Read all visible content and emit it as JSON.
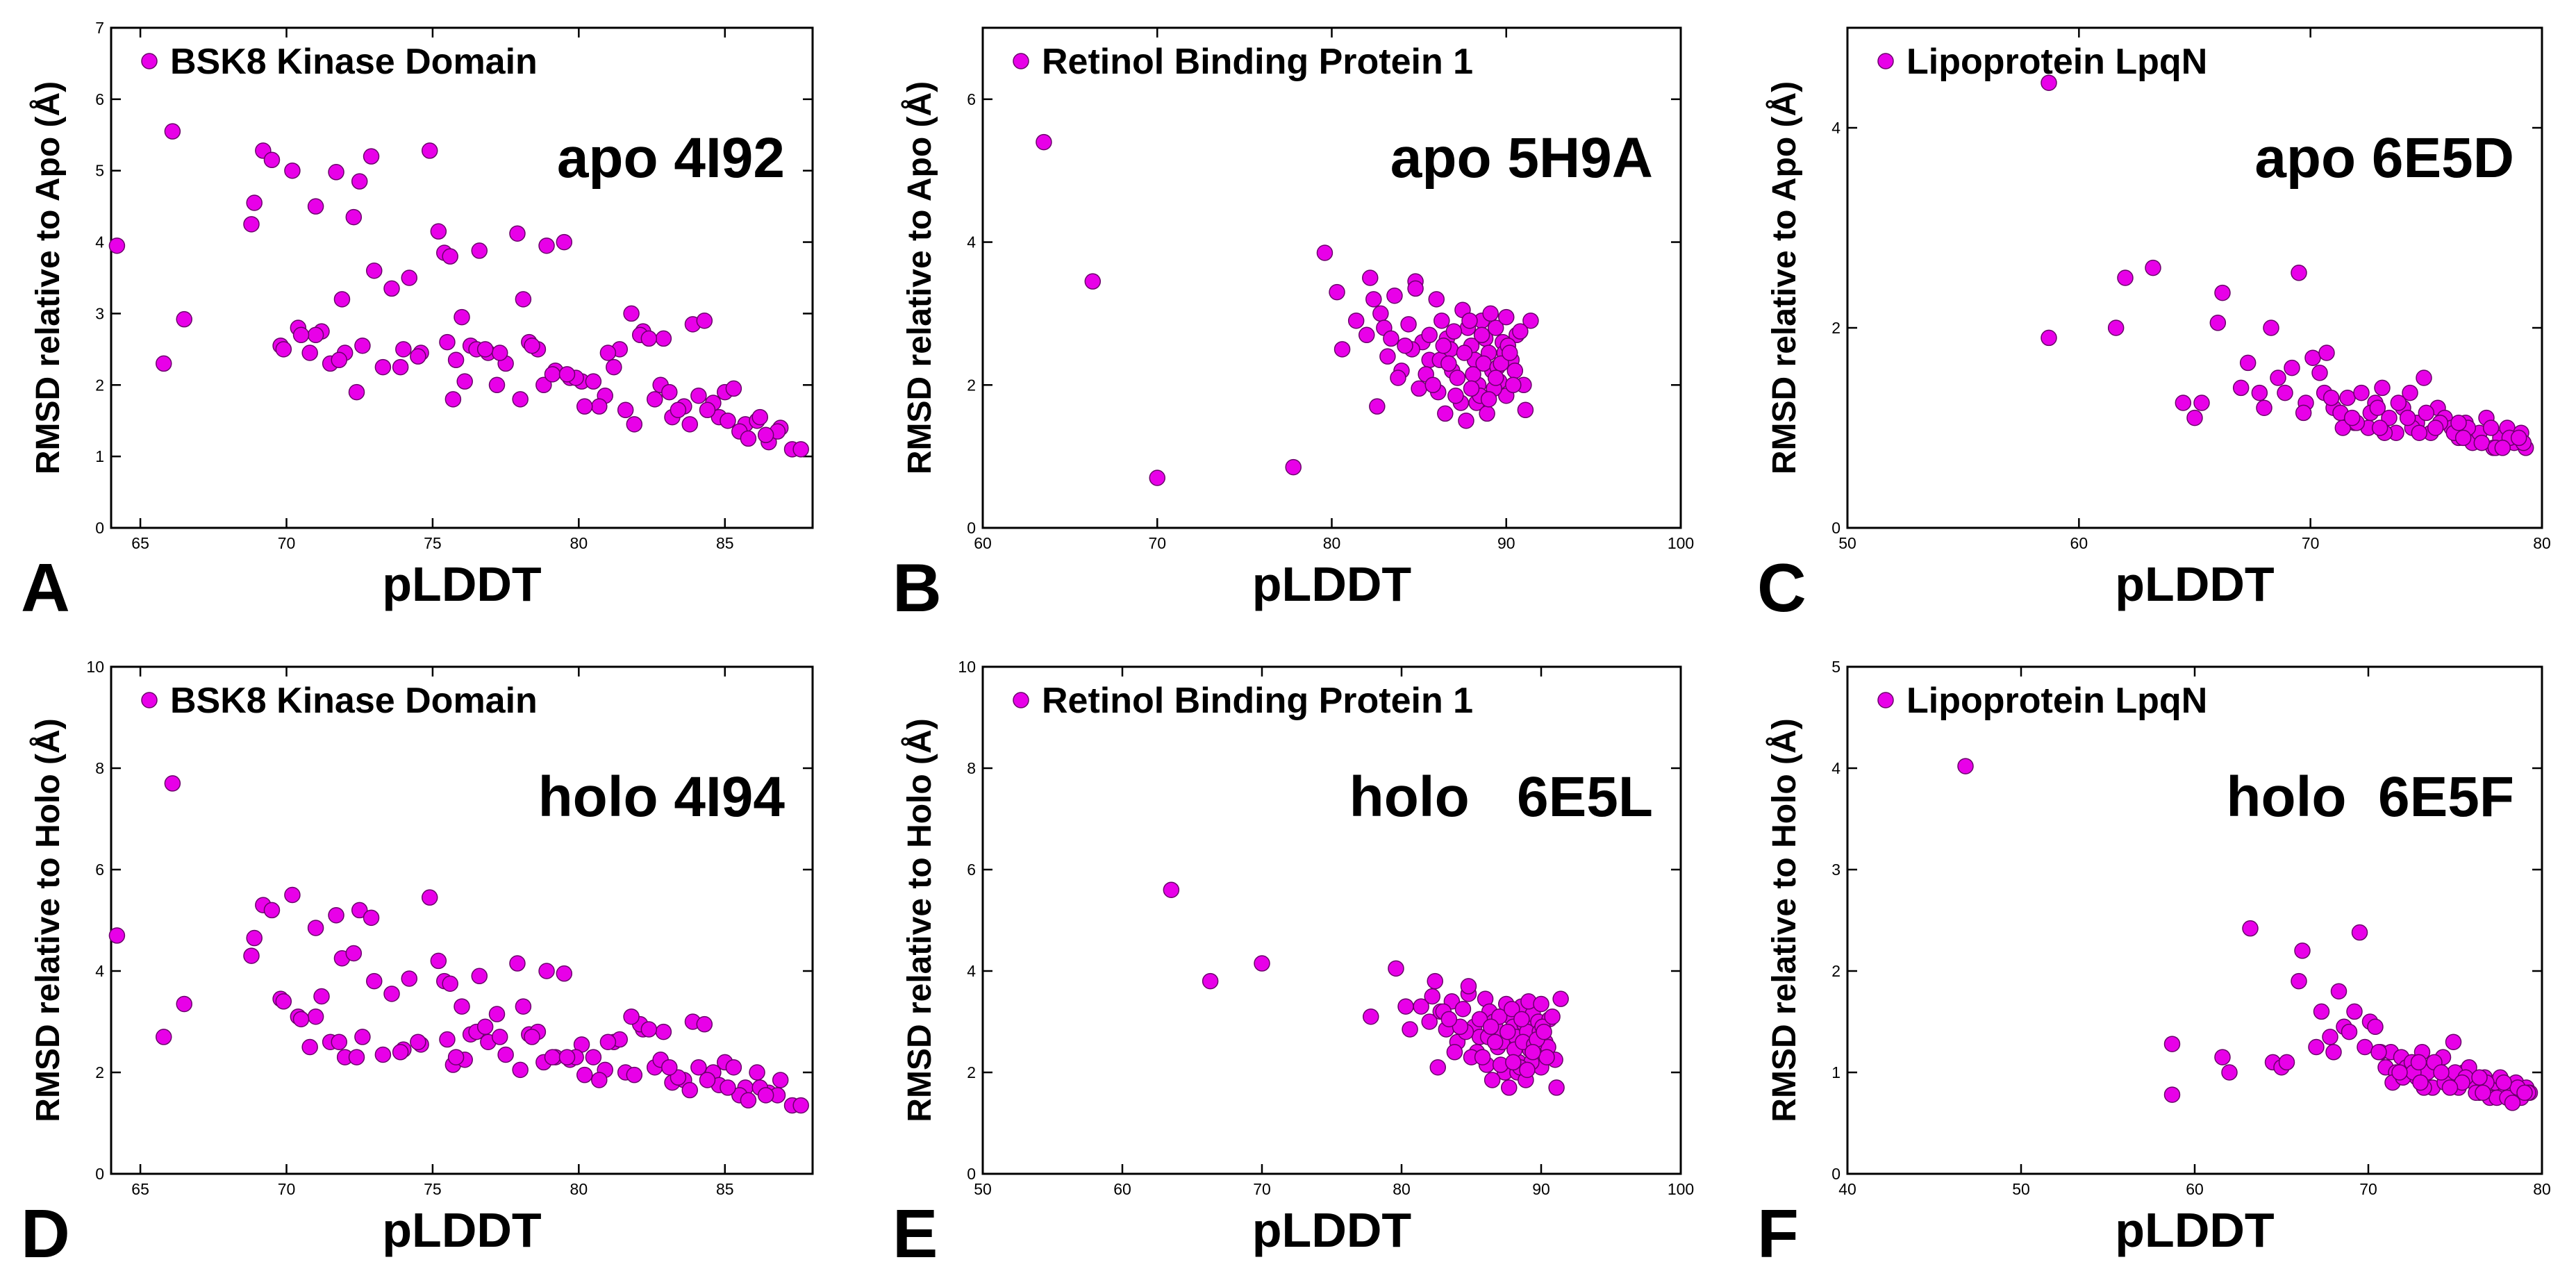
{
  "figure": {
    "type": "scatter-panel-grid",
    "marker_color": "#e800e8",
    "marker_edge": "#6a006a"
  },
  "chart_data": [
    {
      "type": "scatter",
      "panel": "A",
      "title": "apo 4I92",
      "legend": "BSK8 Kinase Domain",
      "xlabel": "pLDDT",
      "ylabel": "RMSD relative to Apo (Å)",
      "xlim": [
        64,
        88
      ],
      "ylim": [
        0,
        7
      ],
      "xticks": [
        65,
        70,
        75,
        80,
        85
      ],
      "yticks": [
        0,
        1,
        2,
        3,
        4,
        5,
        6,
        7
      ],
      "x": [
        64.2,
        65.8,
        66.1,
        66.5,
        68.8,
        68.9,
        69.2,
        69.5,
        69.8,
        70.2,
        70.4,
        70.8,
        71.0,
        71.2,
        71.5,
        71.7,
        71.9,
        72.0,
        72.3,
        72.5,
        72.6,
        72.9,
        73.0,
        73.3,
        73.6,
        74.0,
        74.2,
        74.6,
        74.9,
        75.2,
        75.4,
        75.5,
        75.6,
        75.7,
        76.0,
        76.1,
        76.3,
        76.6,
        76.9,
        77.2,
        77.5,
        77.9,
        78.1,
        78.3,
        78.6,
        78.9,
        79.2,
        79.5,
        79.7,
        80.1,
        80.5,
        80.9,
        81.2,
        81.6,
        81.9,
        82.2,
        82.6,
        82.9,
        83.2,
        83.6,
        83.9,
        84.3,
        84.6,
        85.0,
        85.3,
        85.7,
        86.1,
        86.5,
        86.9,
        87.3,
        87.6,
        69.9,
        71.0,
        71.8,
        72.4,
        75.8,
        76.5,
        77.3,
        78.4,
        78.8,
        79.1,
        79.9,
        80.7,
        81.4,
        82.1,
        82.8,
        83.4,
        84.1,
        84.8,
        85.5,
        86.2,
        86.8,
        70.5,
        73.9,
        74.5,
        76.8,
        78.0,
        79.6,
        80.2,
        81.0,
        81.8,
        82.4,
        83.1,
        83.8,
        84.4,
        85.1,
        85.8,
        86.4
      ],
      "y": [
        3.95,
        2.3,
        5.55,
        2.92,
        4.25,
        4.55,
        5.28,
        5.15,
        2.55,
        5.0,
        2.8,
        2.45,
        4.5,
        2.75,
        2.3,
        4.98,
        3.2,
        2.45,
        4.35,
        4.85,
        2.55,
        5.2,
        3.6,
        2.25,
        3.35,
        2.5,
        3.5,
        2.45,
        5.28,
        4.15,
        3.85,
        2.6,
        3.8,
        1.8,
        2.95,
        2.05,
        2.55,
        3.88,
        2.45,
        2.0,
        2.3,
        4.12,
        3.2,
        2.6,
        2.5,
        3.95,
        2.2,
        4.0,
        2.1,
        2.05,
        2.05,
        1.85,
        2.25,
        1.65,
        1.45,
        2.75,
        1.8,
        2.65,
        1.55,
        1.7,
        2.85,
        2.9,
        1.75,
        1.9,
        1.95,
        1.45,
        1.5,
        1.2,
        1.4,
        1.1,
        1.1,
        2.5,
        2.7,
        2.35,
        1.9,
        2.35,
        2.5,
        2.45,
        2.55,
        2.0,
        2.15,
        2.1,
        1.7,
        2.5,
        2.7,
        2.0,
        1.65,
        1.85,
        1.55,
        1.35,
        1.55,
        1.35,
        2.7,
        2.25,
        2.4,
        2.5,
        1.8,
        2.15,
        1.7,
        2.45,
        3.0,
        2.65,
        1.9,
        1.45,
        1.65,
        1.5,
        1.25,
        1.3
      ]
    },
    {
      "type": "scatter",
      "panel": "B",
      "title": "apo 5H9A",
      "legend": "Retinol Binding Protein 1",
      "xlabel": "pLDDT",
      "ylabel": "RMSD relative to Apo (Å)",
      "xlim": [
        60,
        100
      ],
      "ylim": [
        0,
        7
      ],
      "xticks": [
        60,
        70,
        80,
        90,
        100
      ],
      "yticks": [
        0,
        2,
        4,
        6
      ],
      "x": [
        63.5,
        66.3,
        70.0,
        77.8,
        79.6,
        80.3,
        80.6,
        81.4,
        82.0,
        82.4,
        82.8,
        83.2,
        83.6,
        84.0,
        84.4,
        84.8,
        85.2,
        85.6,
        86.0,
        86.3,
        86.6,
        86.9,
        87.2,
        87.5,
        87.8,
        88.0,
        88.2,
        88.4,
        88.6,
        88.8,
        89.0,
        89.2,
        89.4,
        89.6,
        89.8,
        90.0,
        90.3,
        90.6,
        91.0,
        91.4,
        82.2,
        83.0,
        83.8,
        84.6,
        85.4,
        86.1,
        86.8,
        87.4,
        88.1,
        88.7,
        89.3,
        89.9,
        90.5,
        91.1,
        82.6,
        84.2,
        85.0,
        85.8,
        86.5,
        87.1,
        87.7,
        88.3,
        88.9,
        89.5,
        90.1,
        90.8,
        86.2,
        87.0,
        87.9,
        88.5,
        89.1,
        89.7,
        90.4,
        84.8,
        85.6,
        86.4,
        87.6,
        88.6,
        89.4,
        90.2,
        83.4,
        86.7,
        88.0,
        89.0,
        90.0
      ],
      "y": [
        5.4,
        3.45,
        0.7,
        0.85,
        3.85,
        3.3,
        2.5,
        2.9,
        2.7,
        3.2,
        3.0,
        2.4,
        3.25,
        2.2,
        2.85,
        3.45,
        2.6,
        2.35,
        3.2,
        2.9,
        2.65,
        2.2,
        2.1,
        3.05,
        2.8,
        2.55,
        2.35,
        2.0,
        2.9,
        2.65,
        2.45,
        2.2,
        2.8,
        2.05,
        2.6,
        1.85,
        2.35,
        2.7,
        2.0,
        2.9,
        3.5,
        2.8,
        2.1,
        2.5,
        2.15,
        1.9,
        2.5,
        1.75,
        2.15,
        2.3,
        1.95,
        2.45,
        2.2,
        1.65,
        1.7,
        2.55,
        1.95,
        2.0,
        1.6,
        1.85,
        1.5,
        1.75,
        1.6,
        2.25,
        2.55,
        2.75,
        2.35,
        2.75,
        2.9,
        1.85,
        3.0,
        2.3,
        2.0,
        3.35,
        2.7,
        2.55,
        2.45,
        2.7,
        2.1,
        2.45,
        2.65,
        2.3,
        1.95,
        1.8,
        2.95
      ]
    },
    {
      "type": "scatter",
      "panel": "C",
      "title": "apo 6E5D",
      "legend": "Lipoprotein LpqN",
      "xlabel": "pLDDT",
      "ylabel": "RMSD relative to Apo (Å)",
      "xlim": [
        50,
        80
      ],
      "ylim": [
        0,
        5
      ],
      "xticks": [
        50,
        60,
        70,
        80
      ],
      "yticks": [
        0,
        2,
        4
      ],
      "x": [
        58.7,
        58.7,
        61.6,
        62.0,
        63.2,
        64.5,
        65.0,
        65.3,
        66.0,
        66.2,
        67.0,
        67.3,
        67.8,
        68.0,
        68.3,
        68.6,
        68.9,
        69.2,
        69.5,
        69.8,
        70.1,
        70.4,
        70.7,
        71.0,
        71.3,
        71.6,
        71.9,
        72.2,
        72.5,
        72.8,
        73.1,
        73.4,
        73.7,
        74.0,
        74.3,
        74.6,
        74.9,
        75.2,
        75.5,
        75.8,
        76.1,
        76.4,
        76.7,
        77.0,
        77.3,
        77.6,
        77.9,
        78.2,
        78.5,
        78.8,
        79.1,
        79.3,
        71.4,
        72.0,
        72.6,
        73.2,
        73.8,
        74.4,
        75.0,
        75.6,
        76.2,
        76.8,
        77.4,
        78.0,
        78.6,
        79.2,
        70.6,
        71.8,
        73.0,
        74.2,
        75.4,
        76.6,
        77.8,
        79.0,
        72.9,
        74.7,
        76.4,
        78.3,
        69.7,
        70.9
      ],
      "y": [
        4.45,
        1.9,
        2.0,
        2.5,
        2.6,
        1.25,
        1.1,
        1.25,
        2.05,
        2.35,
        1.4,
        1.65,
        1.35,
        1.2,
        2.0,
        1.5,
        1.35,
        1.6,
        2.55,
        1.25,
        1.7,
        1.55,
        1.75,
        1.2,
        1.15,
        1.3,
        1.05,
        1.35,
        1.0,
        1.25,
        1.4,
        1.1,
        0.95,
        1.2,
        1.35,
        1.05,
        1.5,
        0.95,
        1.2,
        1.1,
        1.0,
        0.9,
        1.05,
        0.85,
        0.95,
        1.1,
        0.8,
        0.9,
        1.0,
        0.85,
        0.95,
        0.8,
        1.0,
        1.05,
        1.15,
        0.95,
        1.25,
        1.0,
        1.15,
        1.05,
        0.95,
        1.0,
        0.85,
        0.8,
        0.9,
        0.85,
        1.35,
        1.1,
        1.0,
        1.1,
        1.0,
        0.9,
        1.0,
        0.9,
        1.2,
        0.95,
        1.05,
        0.8,
        1.15,
        1.3
      ]
    },
    {
      "type": "scatter",
      "panel": "D",
      "title": "holo 4I94",
      "legend": "BSK8 Kinase Domain",
      "xlabel": "pLDDT",
      "ylabel": "RMSD relative to Holo (Å)",
      "xlim": [
        64,
        88
      ],
      "ylim": [
        0,
        10
      ],
      "xticks": [
        65,
        70,
        75,
        80,
        85
      ],
      "yticks": [
        0,
        2,
        4,
        6,
        8,
        10
      ],
      "x": [
        64.2,
        65.8,
        66.1,
        66.5,
        68.8,
        68.9,
        69.2,
        69.5,
        69.8,
        70.2,
        70.4,
        70.8,
        71.0,
        71.2,
        71.5,
        71.7,
        71.9,
        72.0,
        72.3,
        72.5,
        72.6,
        72.9,
        73.0,
        73.3,
        73.6,
        74.0,
        74.2,
        74.6,
        74.9,
        75.2,
        75.4,
        75.5,
        75.6,
        75.7,
        76.0,
        76.1,
        76.3,
        76.6,
        76.9,
        77.2,
        77.5,
        77.9,
        78.1,
        78.3,
        78.6,
        78.9,
        79.2,
        79.5,
        79.7,
        80.1,
        80.5,
        80.9,
        81.2,
        81.6,
        81.9,
        82.2,
        82.6,
        82.9,
        83.2,
        83.6,
        83.9,
        84.3,
        84.6,
        85.0,
        85.3,
        85.7,
        86.1,
        86.5,
        86.9,
        87.3,
        87.6,
        69.9,
        71.0,
        71.8,
        72.4,
        75.8,
        76.5,
        77.3,
        78.4,
        78.8,
        79.1,
        79.9,
        80.7,
        81.4,
        82.1,
        82.8,
        83.4,
        84.1,
        84.8,
        85.5,
        86.2,
        86.8,
        70.5,
        73.9,
        74.5,
        76.8,
        78.0,
        79.6,
        80.2,
        81.0,
        81.8,
        82.4,
        83.1,
        83.8,
        84.4,
        85.1,
        85.8,
        86.4
      ],
      "y": [
        4.7,
        2.7,
        7.7,
        3.35,
        4.3,
        4.65,
        5.3,
        5.2,
        3.45,
        5.5,
        3.1,
        2.5,
        4.85,
        3.5,
        2.6,
        5.1,
        4.25,
        2.3,
        4.35,
        5.2,
        2.7,
        5.05,
        3.8,
        2.35,
        3.55,
        2.45,
        3.85,
        2.55,
        5.45,
        4.2,
        3.8,
        2.65,
        3.75,
        2.15,
        3.3,
        2.25,
        2.75,
        3.9,
        2.6,
        3.15,
        2.35,
        4.15,
        3.3,
        2.75,
        2.8,
        4.0,
        2.3,
        3.95,
        2.25,
        2.55,
        2.3,
        2.05,
        2.6,
        2.0,
        1.95,
        2.85,
        2.1,
        2.8,
        1.8,
        1.85,
        3.0,
        2.95,
        2.0,
        2.2,
        2.1,
        1.7,
        2.0,
        1.6,
        1.85,
        1.35,
        1.35,
        3.4,
        3.1,
        2.6,
        2.3,
        2.3,
        2.8,
        2.7,
        2.7,
        2.2,
        2.3,
        2.3,
        1.85,
        2.65,
        2.95,
        2.25,
        1.9,
        2.1,
        1.75,
        1.55,
        1.7,
        1.55,
        3.05,
        2.4,
        2.6,
        2.9,
        2.05,
        2.3,
        1.95,
        2.6,
        3.1,
        2.85,
        2.1,
        1.65,
        1.85,
        1.7,
        1.45,
        1.55
      ]
    },
    {
      "type": "scatter",
      "panel": "E",
      "title": "holo   6E5L",
      "legend": "Retinol Binding Protein 1",
      "xlabel": "pLDDT",
      "ylabel": "RMSD relative to Holo (Å)",
      "xlim": [
        50,
        100
      ],
      "ylim": [
        0,
        10
      ],
      "xticks": [
        50,
        60,
        70,
        80,
        90,
        100
      ],
      "yticks": [
        0,
        2,
        4,
        6,
        8,
        10
      ],
      "x": [
        63.5,
        66.3,
        70.0,
        77.8,
        79.6,
        80.3,
        80.6,
        81.4,
        82.0,
        82.4,
        82.8,
        83.2,
        83.6,
        84.0,
        84.4,
        84.8,
        85.2,
        85.6,
        86.0,
        86.3,
        86.6,
        86.9,
        87.2,
        87.5,
        87.8,
        88.0,
        88.2,
        88.4,
        88.6,
        88.8,
        89.0,
        89.2,
        89.4,
        89.6,
        89.8,
        90.0,
        90.3,
        90.6,
        91.0,
        91.4,
        82.2,
        83.0,
        83.8,
        84.6,
        85.4,
        86.1,
        86.8,
        87.4,
        88.1,
        88.7,
        89.3,
        89.9,
        90.5,
        91.1,
        82.6,
        84.2,
        85.0,
        85.8,
        86.5,
        87.1,
        87.7,
        88.3,
        88.9,
        89.5,
        90.1,
        90.8,
        86.2,
        87.0,
        87.9,
        88.5,
        89.1,
        89.7,
        90.4,
        84.8,
        85.6,
        86.4,
        87.6,
        88.6,
        89.4,
        90.2,
        83.4,
        86.7,
        88.0,
        89.0,
        90.0
      ],
      "y": [
        5.6,
        3.8,
        4.15,
        3.1,
        4.05,
        3.3,
        2.85,
        3.3,
        3.0,
        3.8,
        3.2,
        2.85,
        3.4,
        2.6,
        3.25,
        3.55,
        2.9,
        2.7,
        3.45,
        3.2,
        3.0,
        2.5,
        2.6,
        3.35,
        3.1,
        2.9,
        2.7,
        2.2,
        3.3,
        2.95,
        2.8,
        2.45,
        3.15,
        2.3,
        3.0,
        2.1,
        2.6,
        3.05,
        2.25,
        3.45,
        3.5,
        3.2,
        2.4,
        2.8,
        2.4,
        2.15,
        2.85,
        2.0,
        2.45,
        2.6,
        2.2,
        2.8,
        2.5,
        1.7,
        2.1,
        2.9,
        2.3,
        2.3,
        1.85,
        2.15,
        1.7,
        2.0,
        1.85,
        2.55,
        2.9,
        3.1,
        2.7,
        3.1,
        3.25,
        2.1,
        3.4,
        2.65,
        2.3,
        3.7,
        3.05,
        2.9,
        2.8,
        3.05,
        2.4,
        2.8,
        3.05,
        2.6,
        2.2,
        2.05,
        3.35
      ]
    },
    {
      "type": "scatter",
      "panel": "F",
      "title": "holo  6E5F",
      "legend": "Lipoprotein LpqN",
      "xlabel": "pLDDT",
      "ylabel": "RMSD relative to Holo (Å)",
      "xlim": [
        40,
        80
      ],
      "ylim": [
        0,
        5
      ],
      "xticks": [
        40,
        50,
        60,
        70,
        80
      ],
      "yticks": [
        0,
        1,
        2,
        3,
        4,
        5
      ],
      "x": [
        46.8,
        58.7,
        58.7,
        61.6,
        62.0,
        63.2,
        64.5,
        65.0,
        65.3,
        66.0,
        66.2,
        67.0,
        67.3,
        67.8,
        68.0,
        68.3,
        68.6,
        68.9,
        69.2,
        69.5,
        69.8,
        70.1,
        70.4,
        70.7,
        71.0,
        71.3,
        71.6,
        71.9,
        72.2,
        72.5,
        72.8,
        73.1,
        73.4,
        73.7,
        74.0,
        74.3,
        74.6,
        74.9,
        75.2,
        75.5,
        75.8,
        76.1,
        76.4,
        76.7,
        77.0,
        77.3,
        77.6,
        77.9,
        78.2,
        78.5,
        78.8,
        79.1,
        79.3,
        71.4,
        72.0,
        72.6,
        73.2,
        73.8,
        74.4,
        75.0,
        75.6,
        76.2,
        76.8,
        77.4,
        78.0,
        78.6,
        79.2,
        70.6,
        71.8,
        73.0,
        74.2,
        75.4,
        76.6,
        77.8,
        79.0,
        72.9,
        74.7,
        76.4,
        78.3
      ],
      "y": [
        4.02,
        1.28,
        0.78,
        1.15,
        1.0,
        2.42,
        1.1,
        1.05,
        1.1,
        1.9,
        2.2,
        1.25,
        1.6,
        1.35,
        1.2,
        1.8,
        1.45,
        1.4,
        1.6,
        2.38,
        1.25,
        1.5,
        1.45,
        1.2,
        1.05,
        1.2,
        1.0,
        1.15,
        1.05,
        1.1,
        0.95,
        1.2,
        1.0,
        0.85,
        1.1,
        1.15,
        0.9,
        1.3,
        0.85,
        1.0,
        1.05,
        0.9,
        0.8,
        0.95,
        0.75,
        0.9,
        0.95,
        0.8,
        0.85,
        0.9,
        0.75,
        0.85,
        0.8,
        0.9,
        0.95,
        1.0,
        0.85,
        1.1,
        0.9,
        1.0,
        0.95,
        0.8,
        0.9,
        0.75,
        0.75,
        0.85,
        0.8,
        1.2,
        1.0,
        0.9,
        1.0,
        0.9,
        0.8,
        0.9,
        0.8,
        1.1,
        0.85,
        0.95,
        0.7
      ]
    }
  ]
}
